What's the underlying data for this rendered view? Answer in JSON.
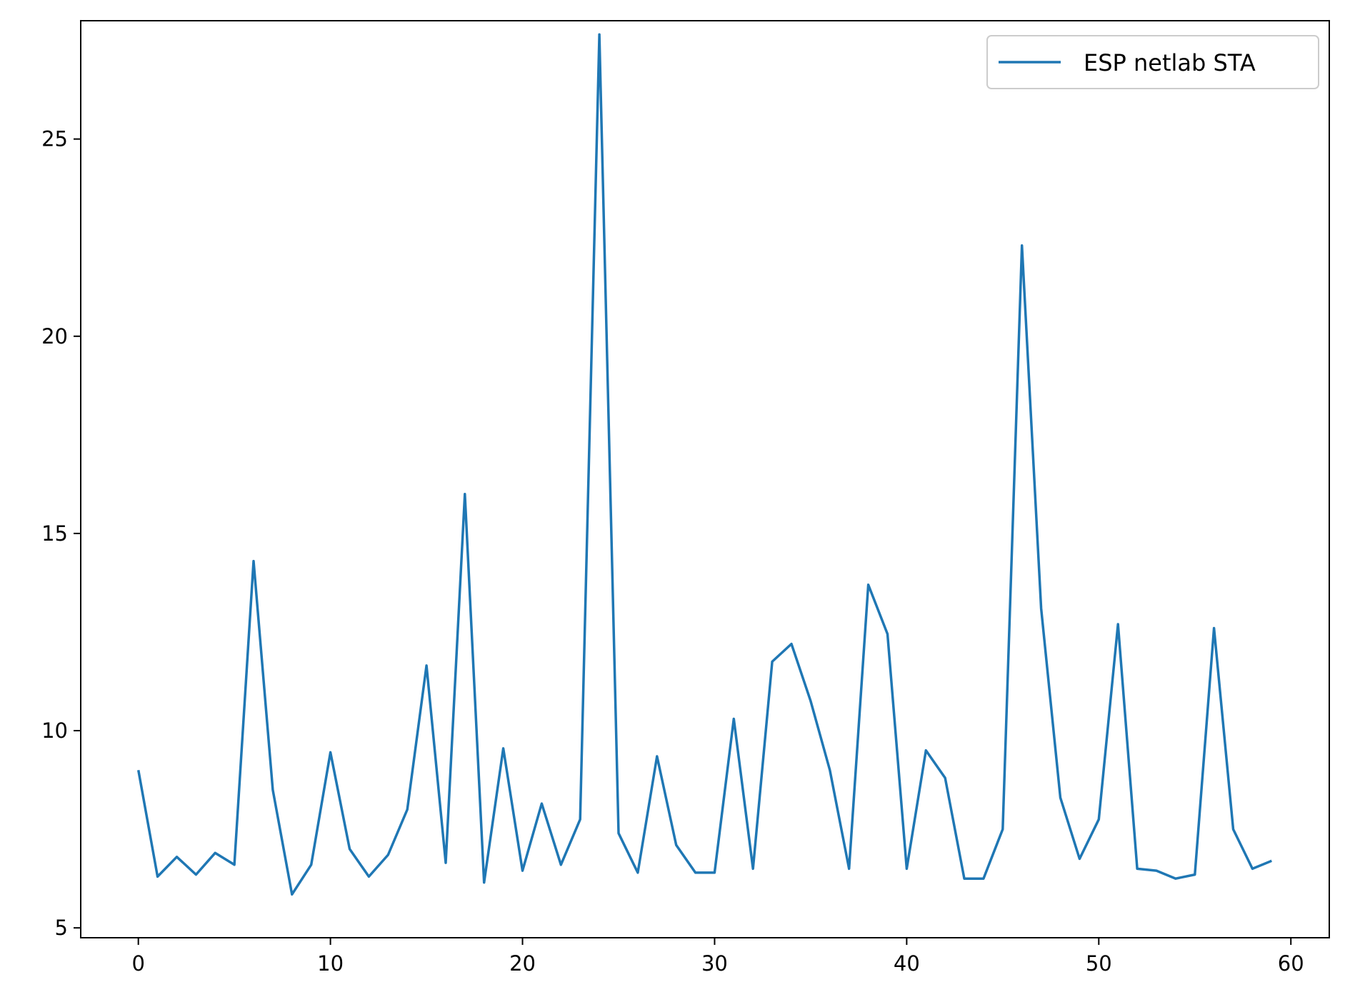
{
  "chart_data": {
    "type": "line",
    "title": "",
    "xlabel": "",
    "ylabel": "",
    "xlim": [
      -3,
      62
    ],
    "ylim": [
      4.75,
      28.0
    ],
    "xticks": [
      0,
      10,
      20,
      30,
      40,
      50,
      60
    ],
    "yticks": [
      5,
      10,
      15,
      20,
      25
    ],
    "grid": false,
    "legend_position": "top-right",
    "x": [
      0,
      1,
      2,
      3,
      4,
      5,
      6,
      7,
      8,
      9,
      10,
      11,
      12,
      13,
      14,
      15,
      16,
      17,
      18,
      19,
      20,
      21,
      22,
      23,
      24,
      25,
      26,
      27,
      28,
      29,
      30,
      31,
      32,
      33,
      34,
      35,
      36,
      37,
      38,
      39,
      40,
      41,
      42,
      43,
      44,
      45,
      46,
      47,
      48,
      49,
      50,
      51,
      52,
      53,
      54,
      55,
      56,
      57,
      58,
      59
    ],
    "series": [
      {
        "name": "ESP netlab STA",
        "color": "#1f77b4",
        "values": [
          9.0,
          6.3,
          6.8,
          6.35,
          6.9,
          6.6,
          14.3,
          8.5,
          5.85,
          6.6,
          9.45,
          7.0,
          6.3,
          6.85,
          8.0,
          11.65,
          6.65,
          16.0,
          6.15,
          9.55,
          6.45,
          8.15,
          6.6,
          7.75,
          27.65,
          7.4,
          6.4,
          9.35,
          7.1,
          6.4,
          6.4,
          10.3,
          6.5,
          11.75,
          12.2,
          10.75,
          9.0,
          6.5,
          13.7,
          12.45,
          6.5,
          9.5,
          8.8,
          6.25,
          6.25,
          7.5,
          22.3,
          13.1,
          8.3,
          6.75,
          7.75,
          12.7,
          6.5,
          6.45,
          6.25,
          6.35,
          12.6,
          7.5,
          6.5,
          6.7
        ]
      }
    ]
  }
}
